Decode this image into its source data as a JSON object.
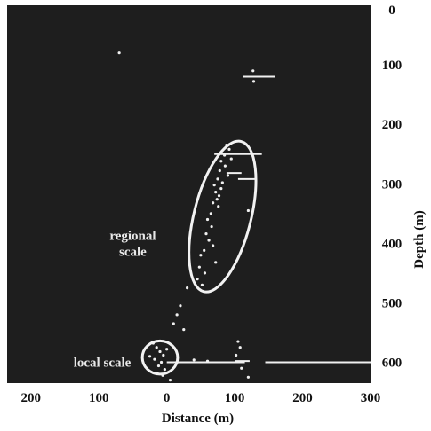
{
  "chart_data": {
    "type": "scatter",
    "title": "",
    "xlabel": "Distance (m)",
    "ylabel": "Depth (m)",
    "x_ticks": [
      {
        "value": -200,
        "label": "200"
      },
      {
        "value": -100,
        "label": "100"
      },
      {
        "value": 0,
        "label": "0"
      },
      {
        "value": 100,
        "label": "100"
      },
      {
        "value": 200,
        "label": "200"
      },
      {
        "value": 300,
        "label": "300"
      }
    ],
    "y_ticks": [
      {
        "value": 0,
        "label": "0"
      },
      {
        "value": 100,
        "label": "100"
      },
      {
        "value": 200,
        "label": "200"
      },
      {
        "value": 300,
        "label": "300"
      },
      {
        "value": 400,
        "label": "400"
      },
      {
        "value": 500,
        "label": "500"
      },
      {
        "value": 600,
        "label": "600"
      }
    ],
    "xlim": [
      -235,
      300
    ],
    "ylim": [
      0,
      635
    ],
    "y_inverted": true,
    "grid": false,
    "background_color": "#1e1e1e",
    "point_color": "#f0f0f0",
    "annotations": [
      {
        "label": "regional scale",
        "lines": [
          "regional",
          "scale"
        ],
        "ellipse_center": [
          82,
          355
        ],
        "ellipse_radii": [
          42,
          130
        ],
        "ellipse_angle_deg": 14,
        "text_anchor": [
          -50,
          400
        ]
      },
      {
        "label": "local scale",
        "lines": [
          "local scale"
        ],
        "ellipse_center": [
          -10,
          592
        ],
        "ellipse_radii": [
          26,
          28
        ],
        "ellipse_angle_deg": 0,
        "text_anchor": [
          -95,
          600
        ]
      }
    ],
    "segments": [
      {
        "x1": 112,
        "x2": 160,
        "y": 120
      },
      {
        "x1": 70,
        "x2": 140,
        "y": 250
      },
      {
        "x1": 88,
        "x2": 110,
        "y": 282
      },
      {
        "x1": 105,
        "x2": 130,
        "y": 292
      },
      {
        "x1": 0,
        "x2": 115,
        "y": 600
      },
      {
        "x1": 145,
        "x2": 300,
        "y": 600
      },
      {
        "x1": 100,
        "x2": 122,
        "y": 598
      }
    ],
    "points": [
      [
        -70,
        80
      ],
      [
        127,
        110
      ],
      [
        128,
        128
      ],
      [
        88,
        235
      ],
      [
        92,
        242
      ],
      [
        85,
        252
      ],
      [
        95,
        258
      ],
      [
        80,
        262
      ],
      [
        86,
        270
      ],
      [
        78,
        278
      ],
      [
        90,
        286
      ],
      [
        75,
        292
      ],
      [
        82,
        298
      ],
      [
        70,
        302
      ],
      [
        80,
        308
      ],
      [
        72,
        314
      ],
      [
        77,
        320
      ],
      [
        74,
        326
      ],
      [
        68,
        332
      ],
      [
        76,
        338
      ],
      [
        120,
        345
      ],
      [
        65,
        350
      ],
      [
        60,
        360
      ],
      [
        66,
        372
      ],
      [
        58,
        384
      ],
      [
        62,
        395
      ],
      [
        68,
        404
      ],
      [
        55,
        412
      ],
      [
        50,
        420
      ],
      [
        72,
        432
      ],
      [
        48,
        440
      ],
      [
        56,
        450
      ],
      [
        45,
        460
      ],
      [
        52,
        470
      ],
      [
        30,
        475
      ],
      [
        20,
        505
      ],
      [
        15,
        520
      ],
      [
        10,
        535
      ],
      [
        25,
        545
      ],
      [
        105,
        565
      ],
      [
        108,
        575
      ],
      [
        102,
        588
      ],
      [
        110,
        610
      ],
      [
        120,
        625
      ],
      [
        -20,
        568
      ],
      [
        -15,
        575
      ],
      [
        -10,
        582
      ],
      [
        -5,
        588
      ],
      [
        -18,
        595
      ],
      [
        -8,
        600
      ],
      [
        -12,
        606
      ],
      [
        -3,
        612
      ],
      [
        -14,
        618
      ],
      [
        -6,
        622
      ],
      [
        15,
        600
      ],
      [
        40,
        596
      ],
      [
        60,
        598
      ],
      [
        5,
        630
      ],
      [
        -25,
        590
      ],
      [
        0,
        578
      ]
    ]
  }
}
